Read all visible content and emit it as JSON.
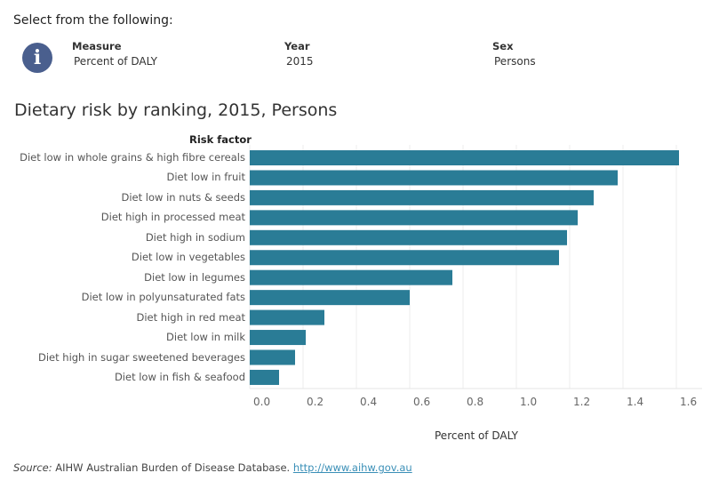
{
  "filters": {
    "prompt": "Select from the following:",
    "info_icon": "info-icon",
    "measure": {
      "label": "Measure",
      "value": "Percent of DALY"
    },
    "year": {
      "label": "Year",
      "value": "2015"
    },
    "sex": {
      "label": "Sex",
      "value": "Persons"
    }
  },
  "chart_data": {
    "type": "bar",
    "orientation": "horizontal",
    "title": "Dietary risk by ranking, 2015, Persons",
    "ycolumn_header": "Risk factor",
    "xlabel": "Percent of DALY",
    "xlim": [
      0,
      1.7
    ],
    "xticks": [
      "0.0",
      "0.2",
      "0.4",
      "0.6",
      "0.8",
      "1.0",
      "1.2",
      "1.4",
      "1.6"
    ],
    "grid": true,
    "bar_color": "#2a7c96",
    "categories": [
      "Diet low in whole grains & high fibre cereals",
      "Diet low in fruit",
      "Diet low in nuts & seeds",
      "Diet high in processed meat",
      "Diet high in sodium",
      "Diet low in vegetables",
      "Diet low in legumes",
      "Diet low in polyunsaturated fats",
      "Diet high in red meat",
      "Diet low in milk",
      "Diet high in sugar sweetened beverages",
      "Diet low in fish & seafood"
    ],
    "values": [
      1.61,
      1.38,
      1.29,
      1.23,
      1.19,
      1.16,
      0.76,
      0.6,
      0.28,
      0.21,
      0.17,
      0.11
    ]
  },
  "source": {
    "label": "Source:",
    "text": "AIHW Australian Burden of Disease Database.",
    "link": "http://www.aihw.gov.au"
  }
}
